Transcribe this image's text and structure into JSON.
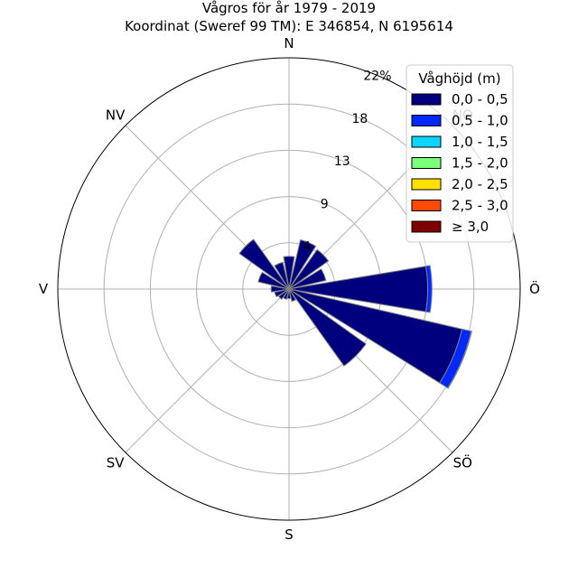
{
  "chart_data": {
    "type": "windrose",
    "title": "Vågros för år 1979 - 2019",
    "subtitle": "Koordinat (Sweref 99 TM): E 346854, N 6195614",
    "directions": [
      "N",
      "NO",
      "Ö",
      "SÖ",
      "S",
      "SV",
      "V",
      "NV"
    ],
    "radial_ticks": [
      "4",
      "9",
      "13",
      "18",
      "22%"
    ],
    "rmax": 22,
    "legend": {
      "title": "Våghöjd (m)",
      "placement": "top-right",
      "entries": [
        {
          "label": "0,0 - 0,5",
          "color": "#00007f"
        },
        {
          "label": "0,5 - 1,0",
          "color": "#0028ff"
        },
        {
          "label": "1,0 - 1,5",
          "color": "#0dd5ff"
        },
        {
          "label": "1,5 - 2,0",
          "color": "#7bff7b"
        },
        {
          "label": "2,0 - 2,5",
          "color": "#ffe100"
        },
        {
          "label": "2,5 - 3,0",
          "color": "#ff4a00"
        },
        {
          "label": "≥ 3,0",
          "color": "#7f0000"
        }
      ]
    },
    "sector_count": 16,
    "sector_directions_deg": [
      0,
      22.5,
      45,
      67.5,
      90,
      112.5,
      135,
      157.5,
      180,
      202.5,
      225,
      247.5,
      270,
      292.5,
      315,
      337.5
    ],
    "series": [
      {
        "name": "0,0 - 0,5",
        "values": [
          3.1,
          4.8,
          4.6,
          3.6,
          13.2,
          16.9,
          9.0,
          1.2,
          0.9,
          1.0,
          1.2,
          1.4,
          1.7,
          3.0,
          5.8,
          2.6
        ]
      },
      {
        "name": "0,5 - 1,0",
        "values": [
          0,
          0,
          0,
          0,
          0.4,
          0.9,
          0,
          0,
          0,
          0,
          0,
          0,
          0,
          0,
          0,
          0
        ]
      },
      {
        "name": "1,0 - 1,5",
        "values": [
          0,
          0,
          0,
          0,
          0,
          0.05,
          0,
          0,
          0,
          0,
          0,
          0,
          0,
          0,
          0,
          0
        ]
      },
      {
        "name": "1,5 - 2,0",
        "values": [
          0,
          0,
          0,
          0,
          0,
          0,
          0,
          0,
          0,
          0,
          0,
          0,
          0,
          0,
          0,
          0
        ]
      },
      {
        "name": "2,0 - 2,5",
        "values": [
          0,
          0,
          0,
          0,
          0,
          0,
          0,
          0,
          0,
          0,
          0,
          0,
          0,
          0,
          0,
          0
        ]
      },
      {
        "name": "2,5 - 3,0",
        "values": [
          0,
          0,
          0,
          0,
          0,
          0,
          0,
          0,
          0,
          0,
          0,
          0,
          0,
          0,
          0,
          0
        ]
      },
      {
        "name": "≥ 3,0",
        "values": [
          0,
          0,
          0,
          0,
          0,
          0,
          0,
          0,
          0,
          0,
          0,
          0,
          0,
          0,
          0,
          0
        ]
      }
    ]
  }
}
